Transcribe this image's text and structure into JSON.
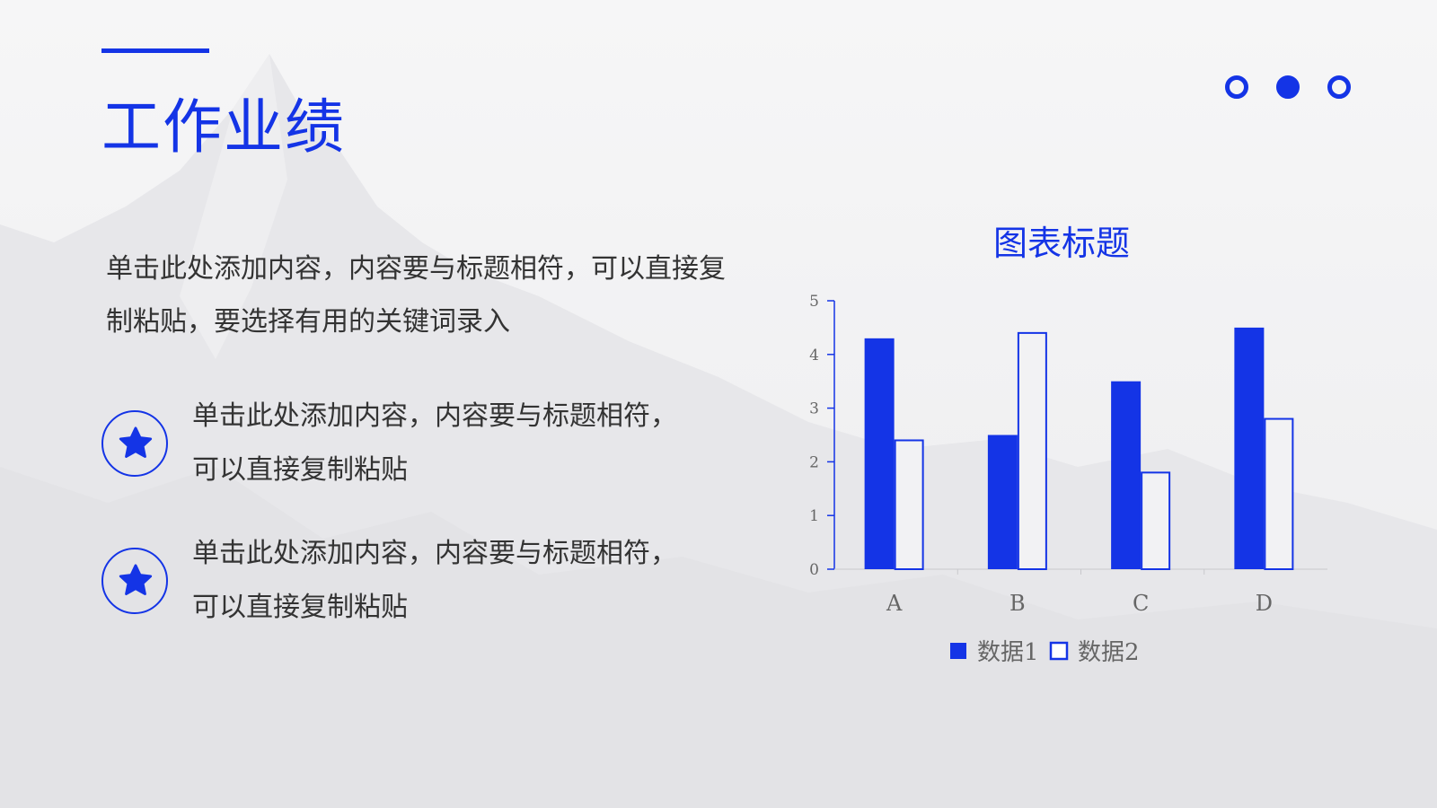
{
  "slide": {
    "title": "工作业绩",
    "intro": "单击此处添加内容，内容要与标题相符，可以直接复制粘贴，要选择有用的关键词录入",
    "points": [
      {
        "icon": "star-icon",
        "text": "单击此处添加内容，内容要与标题相符，可以直接复制粘贴"
      },
      {
        "icon": "star-icon",
        "text": "单击此处添加内容，内容要与标题相符，可以直接复制粘贴"
      }
    ],
    "pager_dots": [
      "outline",
      "filled",
      "outline"
    ]
  },
  "colors": {
    "accent": "#1434e6",
    "text": "#333333",
    "axis": "#666666",
    "series2_fill": "#f2f2f4"
  },
  "chart_data": {
    "type": "bar",
    "title": "图表标题",
    "categories": [
      "A",
      "B",
      "C",
      "D"
    ],
    "series": [
      {
        "name": "数据1",
        "values": [
          4.3,
          2.5,
          3.5,
          4.5
        ],
        "style": "filled"
      },
      {
        "name": "数据2",
        "values": [
          2.4,
          4.4,
          1.8,
          2.8
        ],
        "style": "outline"
      }
    ],
    "ylim": [
      0,
      5
    ],
    "yticks": [
      0,
      1,
      2,
      3,
      4,
      5
    ],
    "grid": false,
    "legend": "bottom"
  }
}
